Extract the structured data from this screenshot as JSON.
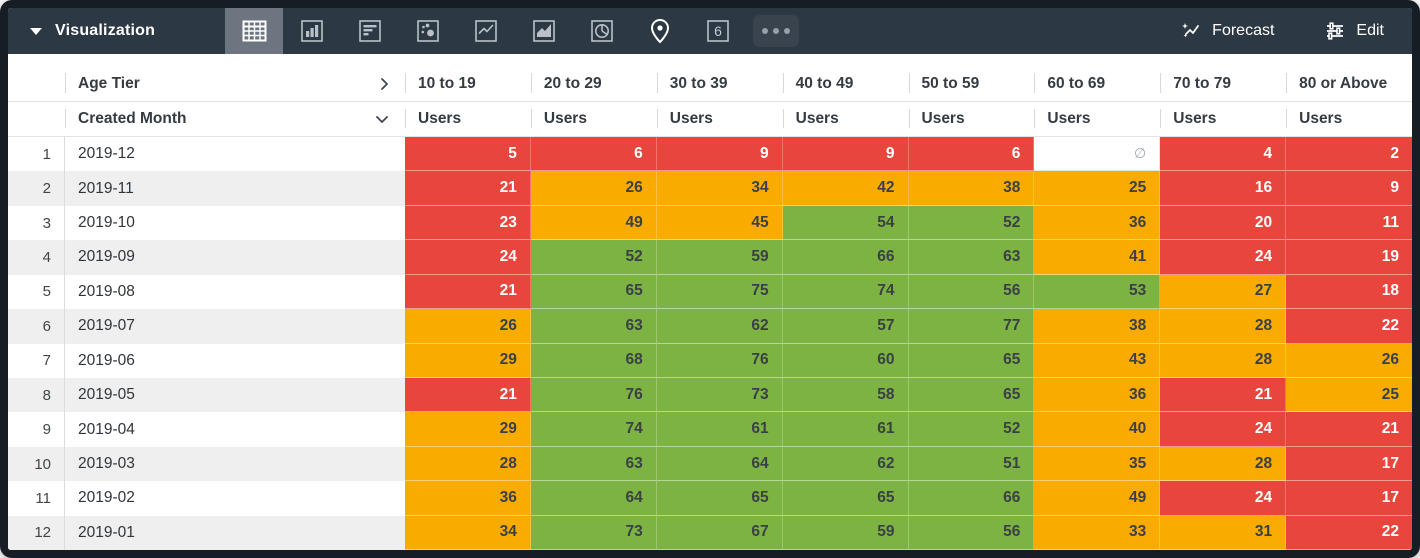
{
  "topbar": {
    "title": "Visualization",
    "forecast_label": "Forecast",
    "edit_label": "Edit",
    "single_value_label": "6",
    "selected_viz": "table",
    "viz_icons": [
      "table",
      "column-chart",
      "bar-chart",
      "scatter",
      "line-chart",
      "area-chart",
      "pie-chart",
      "map-pin",
      "single-value",
      "more-options"
    ]
  },
  "table": {
    "pivot_header": "Age Tier",
    "dimension_header": "Created Month",
    "measure_label": "Users",
    "null_symbol": "∅",
    "age_tiers": [
      "10 to 19",
      "20 to 29",
      "30 to 39",
      "40 to 49",
      "50 to 59",
      "60 to 69",
      "70 to 79",
      "80 or Above"
    ],
    "rows": [
      {
        "num": "1",
        "month": "2019-12",
        "cells": [
          {
            "v": "5",
            "c": "red"
          },
          {
            "v": "6",
            "c": "red"
          },
          {
            "v": "9",
            "c": "red"
          },
          {
            "v": "9",
            "c": "red"
          },
          {
            "v": "6",
            "c": "red"
          },
          {
            "v": null,
            "c": "null"
          },
          {
            "v": "4",
            "c": "red"
          },
          {
            "v": "2",
            "c": "red"
          }
        ]
      },
      {
        "num": "2",
        "month": "2019-11",
        "cells": [
          {
            "v": "21",
            "c": "red"
          },
          {
            "v": "26",
            "c": "orange"
          },
          {
            "v": "34",
            "c": "orange"
          },
          {
            "v": "42",
            "c": "orange"
          },
          {
            "v": "38",
            "c": "orange"
          },
          {
            "v": "25",
            "c": "orange"
          },
          {
            "v": "16",
            "c": "red"
          },
          {
            "v": "9",
            "c": "red"
          }
        ]
      },
      {
        "num": "3",
        "month": "2019-10",
        "cells": [
          {
            "v": "23",
            "c": "red"
          },
          {
            "v": "49",
            "c": "orange"
          },
          {
            "v": "45",
            "c": "orange"
          },
          {
            "v": "54",
            "c": "green"
          },
          {
            "v": "52",
            "c": "green"
          },
          {
            "v": "36",
            "c": "orange"
          },
          {
            "v": "20",
            "c": "red"
          },
          {
            "v": "11",
            "c": "red"
          }
        ]
      },
      {
        "num": "4",
        "month": "2019-09",
        "cells": [
          {
            "v": "24",
            "c": "red"
          },
          {
            "v": "52",
            "c": "green"
          },
          {
            "v": "59",
            "c": "green"
          },
          {
            "v": "66",
            "c": "green"
          },
          {
            "v": "63",
            "c": "green"
          },
          {
            "v": "41",
            "c": "orange"
          },
          {
            "v": "24",
            "c": "red"
          },
          {
            "v": "19",
            "c": "red"
          }
        ]
      },
      {
        "num": "5",
        "month": "2019-08",
        "cells": [
          {
            "v": "21",
            "c": "red"
          },
          {
            "v": "65",
            "c": "green"
          },
          {
            "v": "75",
            "c": "green"
          },
          {
            "v": "74",
            "c": "green"
          },
          {
            "v": "56",
            "c": "green"
          },
          {
            "v": "53",
            "c": "green"
          },
          {
            "v": "27",
            "c": "orange"
          },
          {
            "v": "18",
            "c": "red"
          }
        ]
      },
      {
        "num": "6",
        "month": "2019-07",
        "cells": [
          {
            "v": "26",
            "c": "orange"
          },
          {
            "v": "63",
            "c": "green"
          },
          {
            "v": "62",
            "c": "green"
          },
          {
            "v": "57",
            "c": "green"
          },
          {
            "v": "77",
            "c": "green"
          },
          {
            "v": "38",
            "c": "orange"
          },
          {
            "v": "28",
            "c": "orange"
          },
          {
            "v": "22",
            "c": "red"
          }
        ]
      },
      {
        "num": "7",
        "month": "2019-06",
        "cells": [
          {
            "v": "29",
            "c": "orange"
          },
          {
            "v": "68",
            "c": "green"
          },
          {
            "v": "76",
            "c": "green"
          },
          {
            "v": "60",
            "c": "green"
          },
          {
            "v": "65",
            "c": "green"
          },
          {
            "v": "43",
            "c": "orange"
          },
          {
            "v": "28",
            "c": "orange"
          },
          {
            "v": "26",
            "c": "orange"
          }
        ]
      },
      {
        "num": "8",
        "month": "2019-05",
        "cells": [
          {
            "v": "21",
            "c": "red"
          },
          {
            "v": "76",
            "c": "green"
          },
          {
            "v": "73",
            "c": "green"
          },
          {
            "v": "58",
            "c": "green"
          },
          {
            "v": "65",
            "c": "green"
          },
          {
            "v": "36",
            "c": "orange"
          },
          {
            "v": "21",
            "c": "red"
          },
          {
            "v": "25",
            "c": "orange"
          }
        ]
      },
      {
        "num": "9",
        "month": "2019-04",
        "cells": [
          {
            "v": "29",
            "c": "orange"
          },
          {
            "v": "74",
            "c": "green"
          },
          {
            "v": "61",
            "c": "green"
          },
          {
            "v": "61",
            "c": "green"
          },
          {
            "v": "52",
            "c": "green"
          },
          {
            "v": "40",
            "c": "orange"
          },
          {
            "v": "24",
            "c": "red"
          },
          {
            "v": "21",
            "c": "red"
          }
        ]
      },
      {
        "num": "10",
        "month": "2019-03",
        "cells": [
          {
            "v": "28",
            "c": "orange"
          },
          {
            "v": "63",
            "c": "green"
          },
          {
            "v": "64",
            "c": "green"
          },
          {
            "v": "62",
            "c": "green"
          },
          {
            "v": "51",
            "c": "green"
          },
          {
            "v": "35",
            "c": "orange"
          },
          {
            "v": "28",
            "c": "orange"
          },
          {
            "v": "17",
            "c": "red"
          }
        ]
      },
      {
        "num": "11",
        "month": "2019-02",
        "cells": [
          {
            "v": "36",
            "c": "orange"
          },
          {
            "v": "64",
            "c": "green"
          },
          {
            "v": "65",
            "c": "green"
          },
          {
            "v": "65",
            "c": "green"
          },
          {
            "v": "66",
            "c": "green"
          },
          {
            "v": "49",
            "c": "orange"
          },
          {
            "v": "24",
            "c": "red"
          },
          {
            "v": "17",
            "c": "red"
          }
        ]
      },
      {
        "num": "12",
        "month": "2019-01",
        "cells": [
          {
            "v": "34",
            "c": "orange"
          },
          {
            "v": "73",
            "c": "green"
          },
          {
            "v": "67",
            "c": "green"
          },
          {
            "v": "59",
            "c": "green"
          },
          {
            "v": "56",
            "c": "green"
          },
          {
            "v": "33",
            "c": "orange"
          },
          {
            "v": "31",
            "c": "orange"
          },
          {
            "v": "22",
            "c": "red"
          }
        ]
      }
    ]
  },
  "colors": {
    "red": "#E8463C",
    "orange": "#F9AB00",
    "green": "#7CB342",
    "topbar": "#2C3844"
  }
}
